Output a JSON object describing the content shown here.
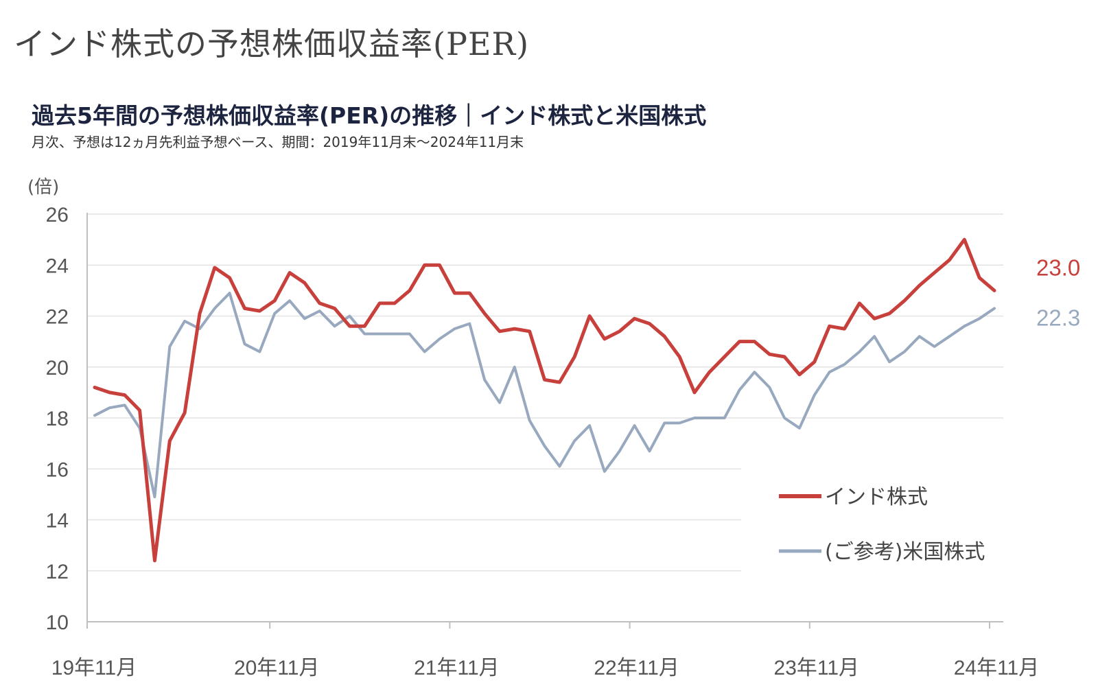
{
  "header": {
    "page_title": "インド株式の予想株価収益率(PER)"
  },
  "chart_data": {
    "type": "line",
    "title": "過去5年間の予想株価収益率(PER)の推移｜インド株式と米国株式",
    "subtitle": "月次、予想は12ヵ月先利益予想ベース、期間：2019年11月末～2024年11月末",
    "ylabel": "(倍)",
    "xlabel": "",
    "ylim": [
      10,
      26
    ],
    "yticks": [
      10,
      12,
      14,
      16,
      18,
      20,
      22,
      24,
      26
    ],
    "xtick_labels": [
      "19年11月",
      "20年11月",
      "21年11月",
      "22年11月",
      "23年11月",
      "24年11月"
    ],
    "xtick_index": [
      0,
      12,
      24,
      36,
      48,
      60
    ],
    "grid": true,
    "legend_position": "bottom-right",
    "series": [
      {
        "name": "インド株式",
        "color": "#c8403c",
        "end_label": "23.0",
        "values": [
          19.2,
          19.0,
          18.9,
          18.3,
          12.4,
          17.1,
          18.2,
          22.1,
          23.9,
          23.5,
          22.3,
          22.2,
          22.6,
          23.7,
          23.3,
          22.5,
          22.3,
          21.6,
          21.6,
          22.5,
          22.5,
          23.0,
          24.0,
          24.0,
          22.9,
          22.9,
          22.1,
          21.4,
          21.5,
          21.4,
          19.5,
          19.4,
          20.4,
          22.0,
          21.1,
          21.4,
          21.9,
          21.7,
          21.2,
          20.4,
          19.0,
          19.8,
          20.4,
          21.0,
          21.0,
          20.5,
          20.4,
          19.7,
          20.2,
          21.6,
          21.5,
          22.5,
          21.9,
          22.1,
          22.6,
          23.2,
          23.7,
          24.2,
          25.0,
          23.5,
          23.0
        ]
      },
      {
        "name": "(ご参考)米国株式",
        "color": "#98a9bf",
        "end_label": "22.3",
        "values": [
          18.1,
          18.4,
          18.5,
          17.6,
          14.9,
          20.8,
          21.8,
          21.5,
          22.3,
          22.9,
          20.9,
          20.6,
          22.1,
          22.6,
          21.9,
          22.2,
          21.6,
          22.0,
          21.3,
          21.3,
          21.3,
          21.3,
          20.6,
          21.1,
          21.5,
          21.7,
          19.5,
          18.6,
          20.0,
          17.9,
          16.9,
          16.1,
          17.1,
          17.7,
          15.9,
          16.7,
          17.7,
          16.7,
          17.8,
          17.8,
          18.0,
          18.0,
          18.0,
          19.1,
          19.8,
          19.2,
          18.0,
          17.6,
          18.9,
          19.8,
          20.1,
          20.6,
          21.2,
          20.2,
          20.6,
          21.2,
          20.8,
          21.2,
          21.6,
          21.9,
          22.3
        ]
      }
    ]
  }
}
